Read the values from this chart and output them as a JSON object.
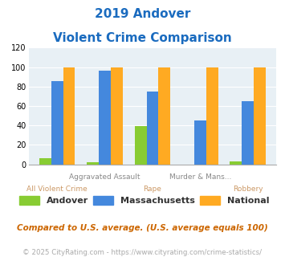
{
  "title_line1": "2019 Andover",
  "title_line2": "Violent Crime Comparison",
  "categories": [
    "All Violent Crime",
    "Aggravated Assault",
    "Rape",
    "Murder & Mans...",
    "Robbery"
  ],
  "xlabels_top": [
    "",
    "Aggravated Assault",
    "",
    "Murder & Mans...",
    ""
  ],
  "xlabels_bottom": [
    "All Violent Crime",
    "",
    "Rape",
    "",
    "Robbery"
  ],
  "andover": [
    6,
    2,
    39,
    0,
    3
  ],
  "massachusetts": [
    86,
    96,
    75,
    45,
    65
  ],
  "national": [
    100,
    100,
    100,
    100,
    100
  ],
  "colors": {
    "andover": "#88cc33",
    "massachusetts": "#4488dd",
    "national": "#ffaa22"
  },
  "ylim": [
    0,
    120
  ],
  "yticks": [
    0,
    20,
    40,
    60,
    80,
    100,
    120
  ],
  "title_color": "#1a6bbf",
  "footnote1": "Compared to U.S. average. (U.S. average equals 100)",
  "footnote2": "© 2025 CityRating.com - https://www.cityrating.com/crime-statistics/",
  "footnote1_color": "#cc6600",
  "footnote2_color": "#aaaaaa",
  "bg_color": "#e8f0f5",
  "bar_width": 0.25,
  "xlabel_top_color": "#888888",
  "xlabel_bot_color": "#cc9966"
}
